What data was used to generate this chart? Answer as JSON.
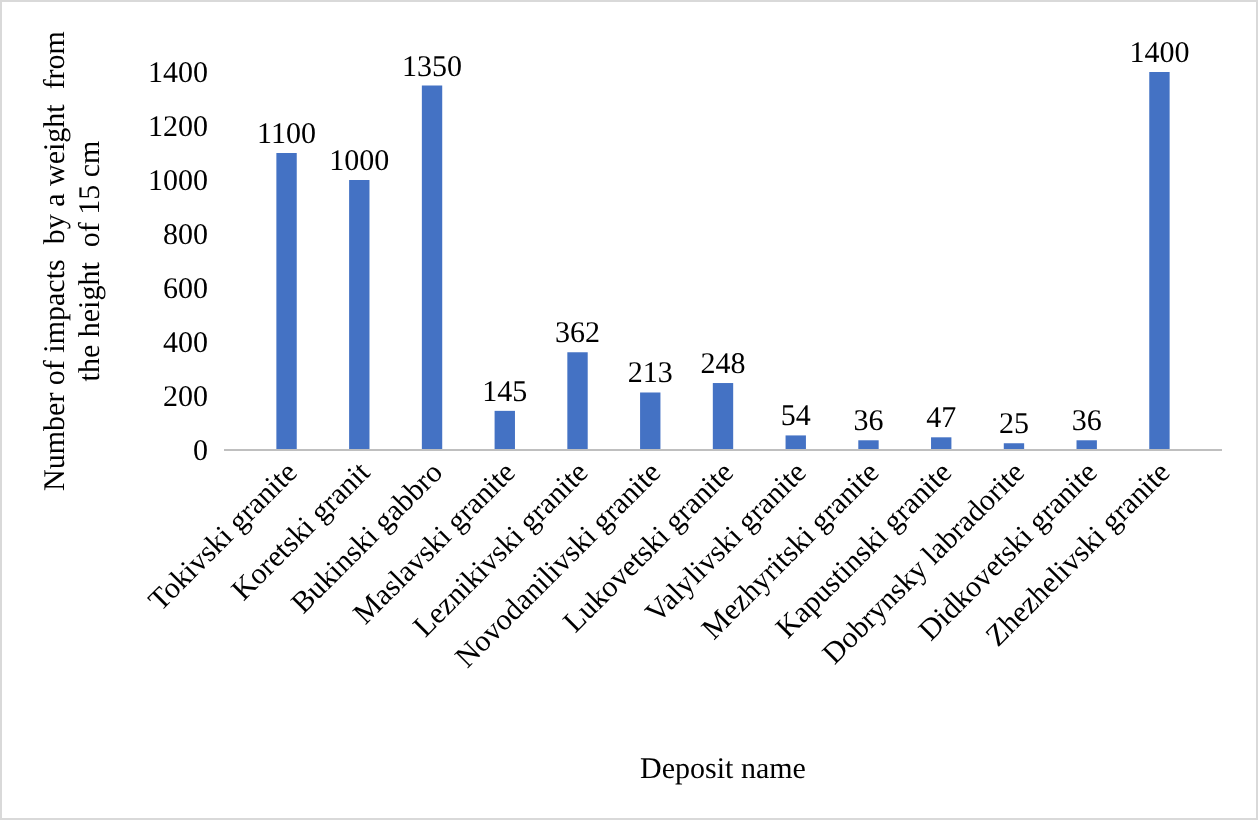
{
  "chart_data": {
    "type": "bar",
    "xlabel": "Deposit name",
    "ylabel": "Number of impacts  by a weight  from the height  of 15 cm",
    "categories": [
      "Tokivski granite",
      "Koretski granit",
      "Bukinski gabbro",
      "Maslavski granite",
      "Leznikivski granite",
      "Novodanilivski granite",
      "Lukovetski granite",
      "Valylivski granite",
      "Mezhyritski granite",
      "Kapustinski granite",
      "Dobrynsky labradorite",
      "Didkovetski granite",
      "Zhezhelivski granite"
    ],
    "values": [
      1100,
      1000,
      1350,
      145,
      362,
      213,
      248,
      54,
      36,
      47,
      25,
      36,
      1400
    ],
    "color": "#4472c4",
    "ylim": [
      0,
      1400
    ],
    "yticks": [
      0,
      200,
      400,
      600,
      800,
      1000,
      1200,
      1400
    ],
    "grid": false,
    "data_labels": true
  }
}
